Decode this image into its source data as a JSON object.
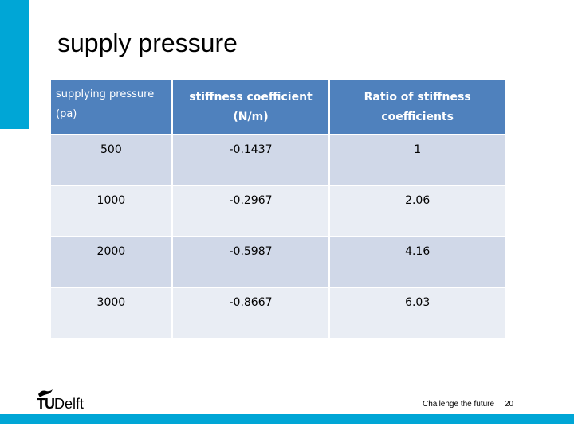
{
  "slide": {
    "title": "supply pressure",
    "footer": {
      "logo_text_tu": "TU",
      "logo_text_delft": "Delft",
      "tagline": "Challenge the future",
      "page_number": "20"
    },
    "colors": {
      "accent": "#00a6d6",
      "header_fill": "#4f81bd",
      "row_odd": "#d0d8e8",
      "row_even": "#e9edf4"
    }
  },
  "table": {
    "headers": [
      "supplying pressure (pa)",
      "stiffness coefficient (N/m)",
      "Ratio of stiffness coefficients"
    ],
    "rows": [
      [
        "500",
        "-0.1437",
        "1"
      ],
      [
        "1000",
        "-0.2967",
        "2.06"
      ],
      [
        "2000",
        "-0.5987",
        "4.16"
      ],
      [
        "3000",
        "-0.8667",
        "6.03"
      ]
    ]
  }
}
